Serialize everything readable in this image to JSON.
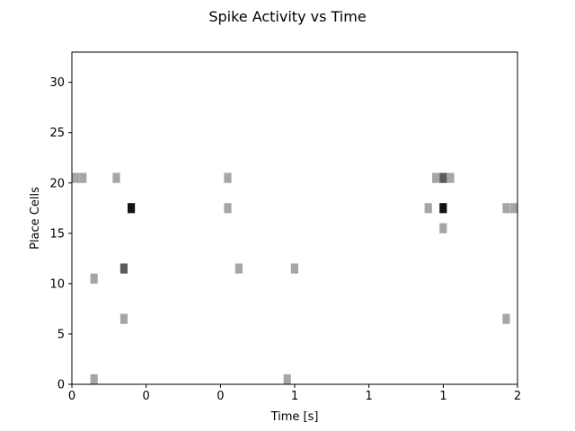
{
  "chart_data": {
    "type": "heatmap",
    "title": "Spike Activity vs Time",
    "xlabel": "Time [s]",
    "ylabel": "Place Cells",
    "xlim": [
      0,
      2
    ],
    "ylim": [
      0,
      33
    ],
    "x_ticks": [
      {
        "value": 0.0,
        "label": "0"
      },
      {
        "value": 0.333,
        "label": "0"
      },
      {
        "value": 0.667,
        "label": "0"
      },
      {
        "value": 1.0,
        "label": "1"
      },
      {
        "value": 1.333,
        "label": "1"
      },
      {
        "value": 1.667,
        "label": "1"
      },
      {
        "value": 2.0,
        "label": "2"
      }
    ],
    "y_ticks": [
      0,
      5,
      10,
      15,
      20,
      25,
      30
    ],
    "grid": false,
    "colormap": "gray_r",
    "bin_width_s": 0.033,
    "cells": [
      {
        "t": 0.0,
        "cell": 20,
        "count": 1
      },
      {
        "t": 0.033,
        "cell": 20,
        "count": 1
      },
      {
        "t": 0.083,
        "cell": 0,
        "count": 1
      },
      {
        "t": 0.083,
        "cell": 10,
        "count": 1
      },
      {
        "t": 0.183,
        "cell": 20,
        "count": 1
      },
      {
        "t": 0.217,
        "cell": 6,
        "count": 1
      },
      {
        "t": 0.217,
        "cell": 11,
        "count": 2
      },
      {
        "t": 0.25,
        "cell": 17,
        "count": 3
      },
      {
        "t": 0.683,
        "cell": 17,
        "count": 1
      },
      {
        "t": 0.683,
        "cell": 20,
        "count": 1
      },
      {
        "t": 0.733,
        "cell": 11,
        "count": 1
      },
      {
        "t": 0.95,
        "cell": 0,
        "count": 1
      },
      {
        "t": 0.983,
        "cell": 11,
        "count": 1
      },
      {
        "t": 1.583,
        "cell": 17,
        "count": 1
      },
      {
        "t": 1.617,
        "cell": 20,
        "count": 1
      },
      {
        "t": 1.65,
        "cell": 15,
        "count": 1
      },
      {
        "t": 1.65,
        "cell": 17,
        "count": 3
      },
      {
        "t": 1.65,
        "cell": 20,
        "count": 2
      },
      {
        "t": 1.683,
        "cell": 20,
        "count": 1
      },
      {
        "t": 1.933,
        "cell": 6,
        "count": 1
      },
      {
        "t": 1.933,
        "cell": 17,
        "count": 1
      },
      {
        "t": 1.967,
        "cell": 17,
        "count": 1
      }
    ],
    "count_colors": {
      "1": "#a6a6a6",
      "2": "#5c5c5c",
      "3": "#111111"
    }
  }
}
